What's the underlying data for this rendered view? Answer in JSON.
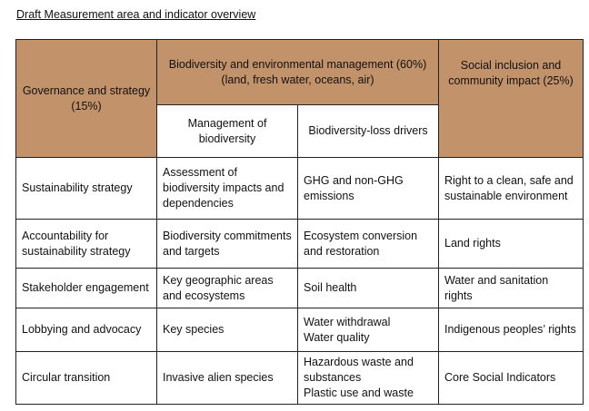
{
  "title": "Draft Measurement area and indicator overview",
  "headers": {
    "governance": "Governance and strategy (15%)",
    "biodiversity": "Biodiversity and environmental management (60%) (land, fresh water, oceans, air)",
    "social": "Social inclusion and community impact (25%)",
    "management": "Management of biodiversity",
    "drivers": "Biodiversity-loss drivers"
  },
  "rows": [
    {
      "governance": "Sustainability strategy",
      "management": "Assessment of biodiversity impacts and dependencies",
      "drivers": [
        "GHG and non-GHG emissions"
      ],
      "social": "Right to a clean, safe and sustainable environment"
    },
    {
      "governance": "Accountability for sustainability strategy",
      "management": "Biodiversity commitments and targets",
      "drivers": [
        "Ecosystem conversion and restoration"
      ],
      "social": "Land rights"
    },
    {
      "governance": "Stakeholder engagement",
      "management": "Key geographic areas and ecosystems",
      "drivers": [
        "Soil health"
      ],
      "social": "Water and sanitation rights"
    },
    {
      "governance": "Lobbying and advocacy",
      "management": "Key species",
      "drivers": [
        "Water withdrawal",
        "Water quality"
      ],
      "social": "Indigenous peoples’ rights"
    },
    {
      "governance": "Circular transition",
      "management": "Invasive alien species",
      "drivers": [
        "Hazardous waste and substances",
        "Plastic use and waste"
      ],
      "social": "Core Social Indicators"
    }
  ]
}
